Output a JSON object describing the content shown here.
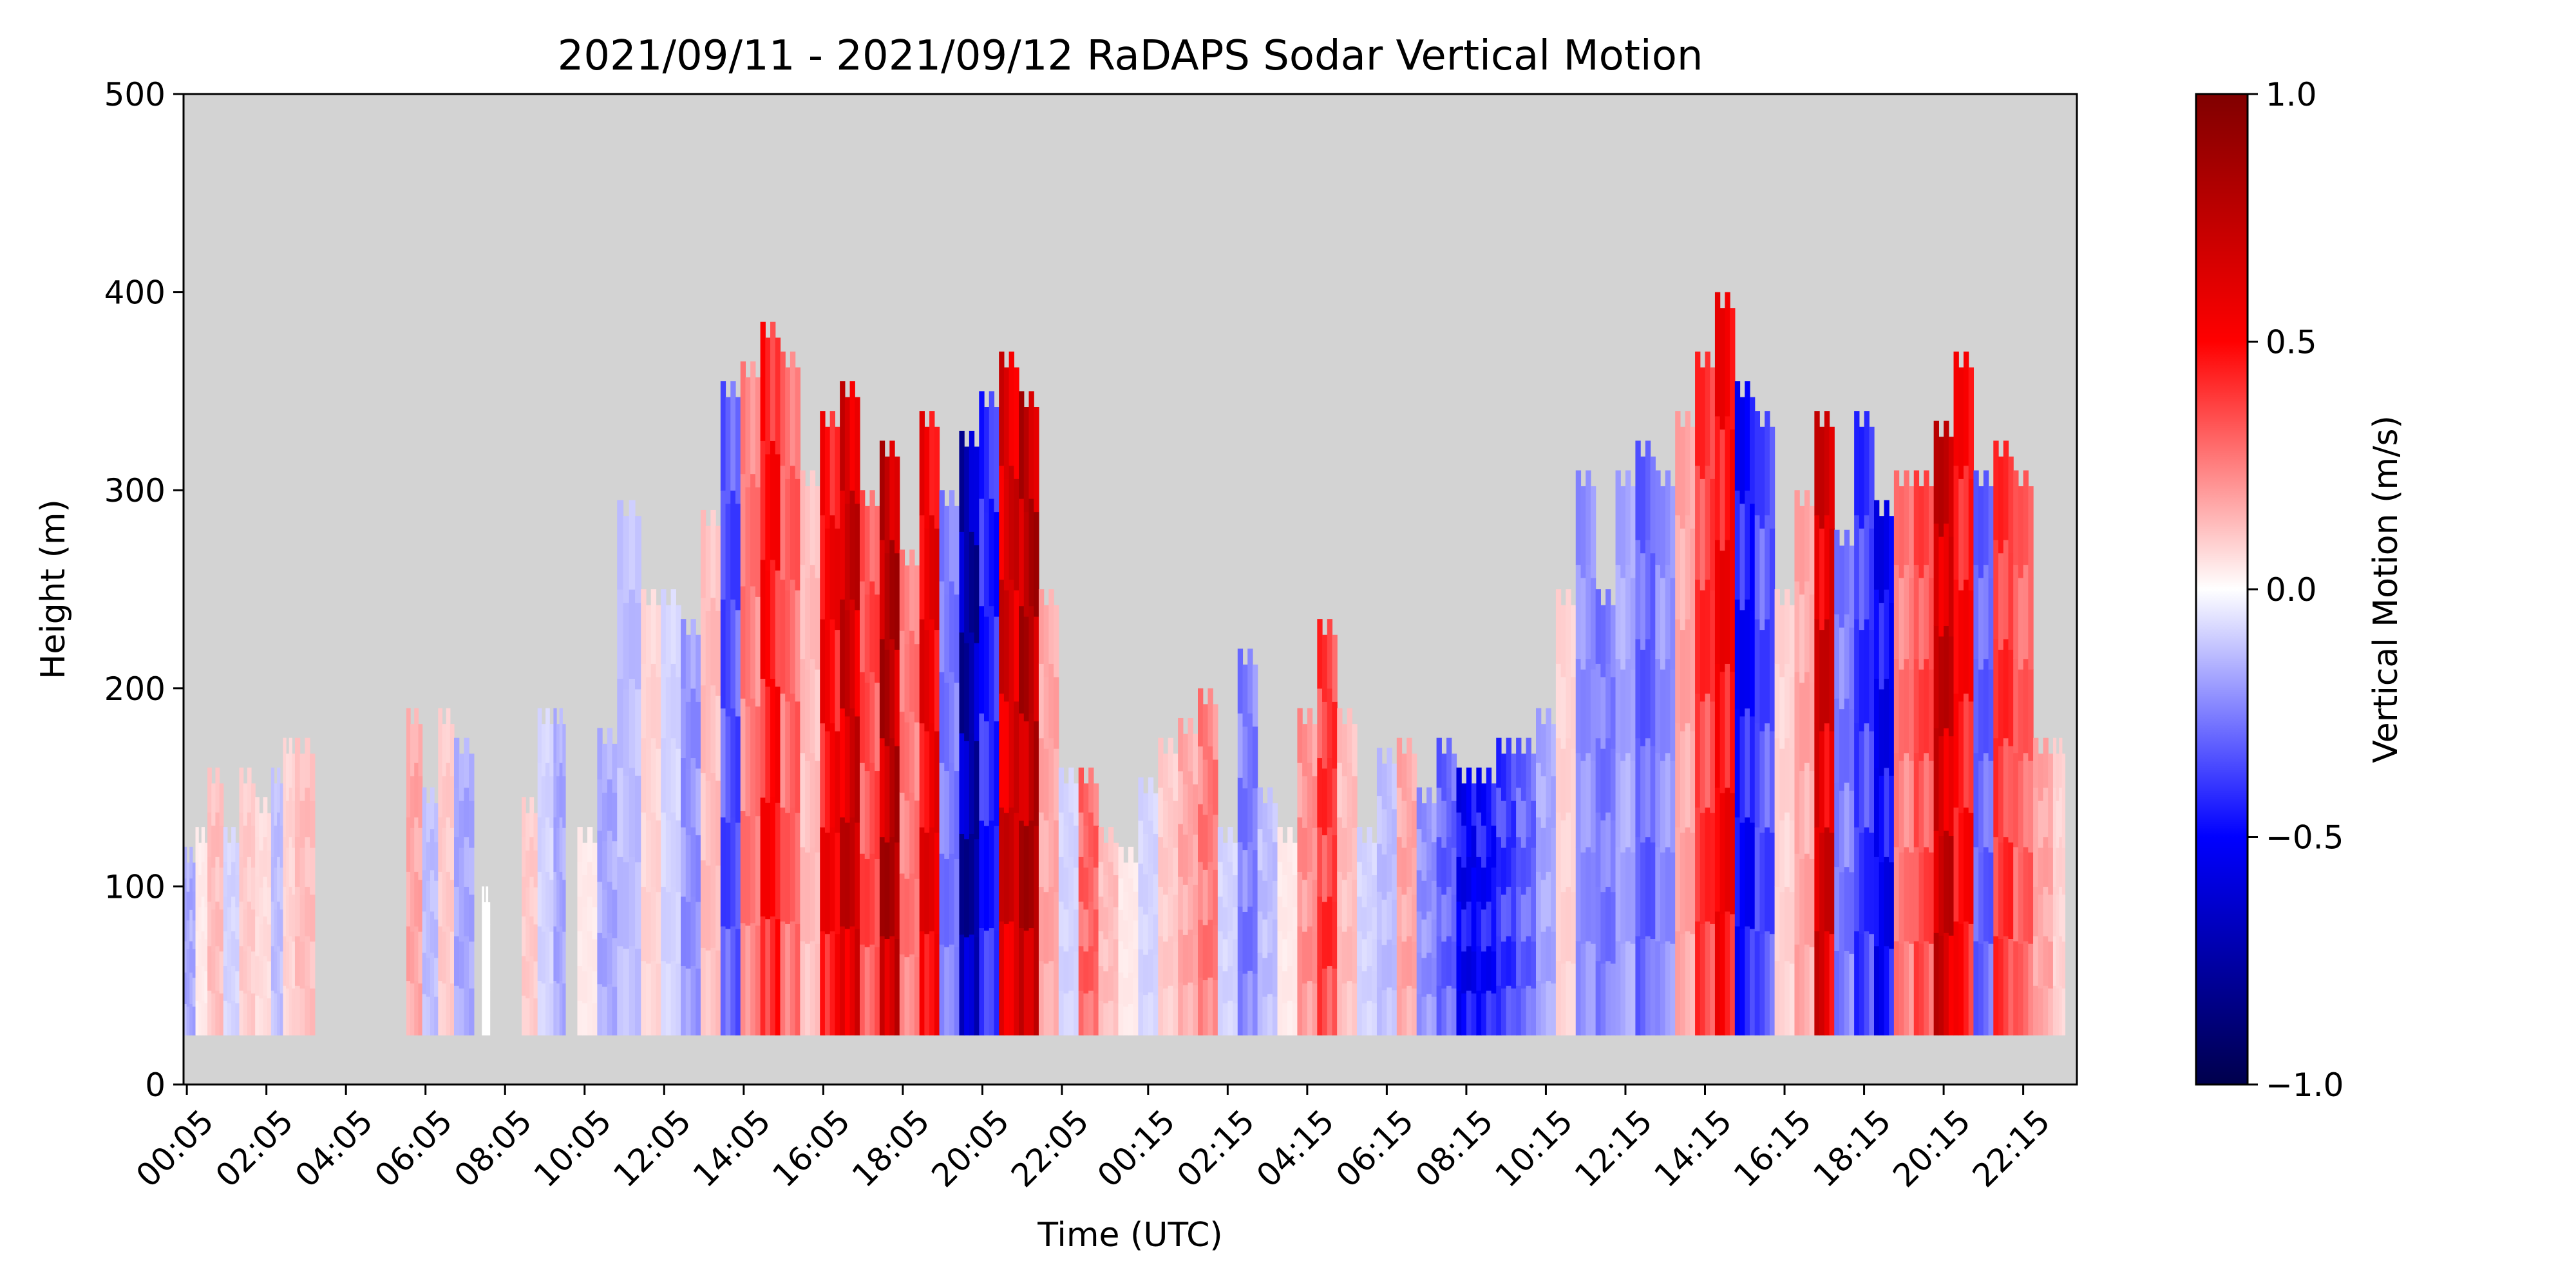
{
  "chart_data": {
    "type": "heatmap",
    "title": "2021/09/11 - 2021/09/12 RaDAPS Sodar Vertical Motion",
    "xlabel": "Time (UTC)",
    "ylabel": "Height (m)",
    "colorbar_label": "Vertical Motion (m/s)",
    "colormap": "seismic",
    "background_color": "#d3d3d3",
    "grid": false,
    "xlim_hours": [
      0,
      47.6
    ],
    "ylim": [
      0,
      500
    ],
    "clim": [
      -1.0,
      1.0
    ],
    "x_ticks": [
      {
        "hour": 0.083,
        "label": "00:05"
      },
      {
        "hour": 2.083,
        "label": "02:05"
      },
      {
        "hour": 4.083,
        "label": "04:05"
      },
      {
        "hour": 6.083,
        "label": "06:05"
      },
      {
        "hour": 8.083,
        "label": "08:05"
      },
      {
        "hour": 10.083,
        "label": "10:05"
      },
      {
        "hour": 12.083,
        "label": "12:05"
      },
      {
        "hour": 14.083,
        "label": "14:05"
      },
      {
        "hour": 16.083,
        "label": "16:05"
      },
      {
        "hour": 18.083,
        "label": "18:05"
      },
      {
        "hour": 20.083,
        "label": "20:05"
      },
      {
        "hour": 22.083,
        "label": "22:05"
      },
      {
        "hour": 24.25,
        "label": "00:15"
      },
      {
        "hour": 26.25,
        "label": "02:15"
      },
      {
        "hour": 28.25,
        "label": "04:15"
      },
      {
        "hour": 30.25,
        "label": "06:15"
      },
      {
        "hour": 32.25,
        "label": "08:15"
      },
      {
        "hour": 34.25,
        "label": "10:15"
      },
      {
        "hour": 36.25,
        "label": "12:15"
      },
      {
        "hour": 38.25,
        "label": "14:15"
      },
      {
        "hour": 40.25,
        "label": "16:15"
      },
      {
        "hour": 42.25,
        "label": "18:15"
      },
      {
        "hour": 44.25,
        "label": "20:15"
      },
      {
        "hour": 46.25,
        "label": "22:15"
      }
    ],
    "y_ticks": [
      {
        "value": 0,
        "label": "0"
      },
      {
        "value": 100,
        "label": "100"
      },
      {
        "value": 200,
        "label": "200"
      },
      {
        "value": 300,
        "label": "300"
      },
      {
        "value": 400,
        "label": "400"
      },
      {
        "value": 500,
        "label": "500"
      }
    ],
    "colorbar_ticks": [
      {
        "value": 1.0,
        "label": "1.0"
      },
      {
        "value": 0.5,
        "label": "0.5"
      },
      {
        "value": 0.0,
        "label": "0.0"
      },
      {
        "value": -0.5,
        "label": "−0.5"
      },
      {
        "value": -1.0,
        "label": "−1.0"
      }
    ],
    "min_height_m": 25,
    "columns": [
      {
        "t0": 0.0,
        "t1": 0.3,
        "top": 120,
        "w": -0.2
      },
      {
        "t0": 0.3,
        "t1": 0.6,
        "top": 130,
        "w": 0.05
      },
      {
        "t0": 0.6,
        "t1": 1.0,
        "top": 160,
        "w": 0.15
      },
      {
        "t0": 1.0,
        "t1": 1.4,
        "top": 130,
        "w": -0.1
      },
      {
        "t0": 1.4,
        "t1": 1.8,
        "top": 160,
        "w": 0.12
      },
      {
        "t0": 1.8,
        "t1": 2.2,
        "top": 145,
        "w": 0.08
      },
      {
        "t0": 2.2,
        "t1": 2.5,
        "top": 160,
        "w": -0.15
      },
      {
        "t0": 2.5,
        "t1": 2.8,
        "top": 175,
        "w": 0.1
      },
      {
        "t0": 2.8,
        "t1": 3.3,
        "top": 175,
        "w": 0.15
      },
      {
        "t0": 5.6,
        "t1": 6.0,
        "top": 190,
        "w": 0.2
      },
      {
        "t0": 6.0,
        "t1": 6.4,
        "top": 150,
        "w": -0.15
      },
      {
        "t0": 6.4,
        "t1": 6.8,
        "top": 190,
        "w": 0.12
      },
      {
        "t0": 6.8,
        "t1": 7.3,
        "top": 175,
        "w": -0.2
      },
      {
        "t0": 7.5,
        "t1": 7.7,
        "top": 100,
        "w": 0.0
      },
      {
        "t0": 8.5,
        "t1": 8.9,
        "top": 145,
        "w": 0.12
      },
      {
        "t0": 8.9,
        "t1": 9.3,
        "top": 190,
        "w": -0.1
      },
      {
        "t0": 9.3,
        "t1": 9.6,
        "top": 190,
        "w": -0.2
      },
      {
        "t0": 9.9,
        "t1": 10.4,
        "top": 130,
        "w": 0.05
      },
      {
        "t0": 10.4,
        "t1": 10.9,
        "top": 180,
        "w": -0.2
      },
      {
        "t0": 10.9,
        "t1": 11.5,
        "top": 295,
        "w": -0.15
      },
      {
        "t0": 11.5,
        "t1": 12.0,
        "top": 250,
        "w": 0.1
      },
      {
        "t0": 12.0,
        "t1": 12.5,
        "top": 250,
        "w": -0.1
      },
      {
        "t0": 12.5,
        "t1": 13.0,
        "top": 235,
        "w": -0.25
      },
      {
        "t0": 13.0,
        "t1": 13.5,
        "top": 290,
        "w": 0.15
      },
      {
        "t0": 13.5,
        "t1": 14.0,
        "top": 355,
        "w": -0.4
      },
      {
        "t0": 14.0,
        "t1": 14.5,
        "top": 365,
        "w": 0.3
      },
      {
        "t0": 14.5,
        "t1": 15.0,
        "top": 385,
        "w": 0.55
      },
      {
        "t0": 15.0,
        "t1": 15.5,
        "top": 370,
        "w": 0.35
      },
      {
        "t0": 15.5,
        "t1": 16.0,
        "top": 310,
        "w": 0.15
      },
      {
        "t0": 16.0,
        "t1": 16.5,
        "top": 340,
        "w": 0.6
      },
      {
        "t0": 16.5,
        "t1": 17.0,
        "top": 355,
        "w": 0.8
      },
      {
        "t0": 17.0,
        "t1": 17.5,
        "top": 300,
        "w": 0.4
      },
      {
        "t0": 17.5,
        "t1": 18.0,
        "top": 325,
        "w": 0.9
      },
      {
        "t0": 18.0,
        "t1": 18.5,
        "top": 270,
        "w": 0.3
      },
      {
        "t0": 18.5,
        "t1": 19.0,
        "top": 340,
        "w": 0.65
      },
      {
        "t0": 19.0,
        "t1": 19.5,
        "top": 300,
        "w": -0.3
      },
      {
        "t0": 19.5,
        "t1": 20.0,
        "top": 330,
        "w": -0.85
      },
      {
        "t0": 20.0,
        "t1": 20.5,
        "top": 350,
        "w": -0.5
      },
      {
        "t0": 20.5,
        "t1": 21.0,
        "top": 370,
        "w": 0.75
      },
      {
        "t0": 21.0,
        "t1": 21.5,
        "top": 350,
        "w": 0.9
      },
      {
        "t0": 21.5,
        "t1": 22.0,
        "top": 250,
        "w": 0.2
      },
      {
        "t0": 22.0,
        "t1": 22.5,
        "top": 160,
        "w": -0.1
      },
      {
        "t0": 22.5,
        "t1": 23.0,
        "top": 160,
        "w": 0.35
      },
      {
        "t0": 23.0,
        "t1": 23.5,
        "top": 130,
        "w": 0.15
      },
      {
        "t0": 23.5,
        "t1": 24.0,
        "top": 120,
        "w": 0.05
      },
      {
        "t0": 24.0,
        "t1": 24.5,
        "top": 155,
        "w": -0.1
      },
      {
        "t0": 24.5,
        "t1": 25.0,
        "top": 175,
        "w": 0.12
      },
      {
        "t0": 25.0,
        "t1": 25.5,
        "top": 185,
        "w": 0.2
      },
      {
        "t0": 25.5,
        "t1": 26.0,
        "top": 200,
        "w": 0.3
      },
      {
        "t0": 26.0,
        "t1": 26.5,
        "top": 130,
        "w": -0.1
      },
      {
        "t0": 26.5,
        "t1": 27.0,
        "top": 220,
        "w": -0.3
      },
      {
        "t0": 27.0,
        "t1": 27.5,
        "top": 150,
        "w": -0.15
      },
      {
        "t0": 27.5,
        "t1": 28.0,
        "top": 130,
        "w": 0.05
      },
      {
        "t0": 28.0,
        "t1": 28.5,
        "top": 190,
        "w": 0.25
      },
      {
        "t0": 28.5,
        "t1": 29.0,
        "top": 235,
        "w": 0.45
      },
      {
        "t0": 29.0,
        "t1": 29.5,
        "top": 190,
        "w": 0.15
      },
      {
        "t0": 29.5,
        "t1": 30.0,
        "top": 130,
        "w": -0.1
      },
      {
        "t0": 30.0,
        "t1": 30.5,
        "top": 170,
        "w": -0.15
      },
      {
        "t0": 30.5,
        "t1": 31.0,
        "top": 175,
        "w": 0.2
      },
      {
        "t0": 31.0,
        "t1": 31.5,
        "top": 150,
        "w": -0.25
      },
      {
        "t0": 31.5,
        "t1": 32.0,
        "top": 175,
        "w": -0.35
      },
      {
        "t0": 32.0,
        "t1": 32.5,
        "top": 160,
        "w": -0.6
      },
      {
        "t0": 32.5,
        "t1": 33.0,
        "top": 160,
        "w": -0.55
      },
      {
        "t0": 33.0,
        "t1": 33.5,
        "top": 175,
        "w": -0.45
      },
      {
        "t0": 33.5,
        "t1": 34.0,
        "top": 175,
        "w": -0.35
      },
      {
        "t0": 34.0,
        "t1": 34.5,
        "top": 190,
        "w": -0.2
      },
      {
        "t0": 34.5,
        "t1": 35.0,
        "top": 250,
        "w": 0.1
      },
      {
        "t0": 35.0,
        "t1": 35.5,
        "top": 310,
        "w": -0.25
      },
      {
        "t0": 35.5,
        "t1": 36.0,
        "top": 250,
        "w": -0.3
      },
      {
        "t0": 36.0,
        "t1": 36.5,
        "top": 310,
        "w": -0.2
      },
      {
        "t0": 36.5,
        "t1": 37.0,
        "top": 325,
        "w": -0.35
      },
      {
        "t0": 37.0,
        "t1": 37.5,
        "top": 310,
        "w": -0.25
      },
      {
        "t0": 37.5,
        "t1": 38.0,
        "top": 340,
        "w": 0.2
      },
      {
        "t0": 38.0,
        "t1": 38.5,
        "top": 370,
        "w": 0.45
      },
      {
        "t0": 38.5,
        "t1": 39.0,
        "top": 400,
        "w": 0.6
      },
      {
        "t0": 39.0,
        "t1": 39.5,
        "top": 355,
        "w": -0.55
      },
      {
        "t0": 39.5,
        "t1": 40.0,
        "top": 340,
        "w": -0.4
      },
      {
        "t0": 40.0,
        "t1": 40.5,
        "top": 250,
        "w": 0.1
      },
      {
        "t0": 40.5,
        "t1": 41.0,
        "top": 300,
        "w": 0.2
      },
      {
        "t0": 41.0,
        "t1": 41.5,
        "top": 340,
        "w": 0.75
      },
      {
        "t0": 41.5,
        "t1": 42.0,
        "top": 280,
        "w": -0.3
      },
      {
        "t0": 42.0,
        "t1": 42.5,
        "top": 340,
        "w": -0.45
      },
      {
        "t0": 42.5,
        "t1": 43.0,
        "top": 295,
        "w": -0.6
      },
      {
        "t0": 43.0,
        "t1": 43.5,
        "top": 310,
        "w": 0.3
      },
      {
        "t0": 43.5,
        "t1": 44.0,
        "top": 310,
        "w": 0.4
      },
      {
        "t0": 44.0,
        "t1": 44.5,
        "top": 335,
        "w": 0.8
      },
      {
        "t0": 44.5,
        "t1": 45.0,
        "top": 370,
        "w": 0.55
      },
      {
        "t0": 45.0,
        "t1": 45.5,
        "top": 310,
        "w": -0.35
      },
      {
        "t0": 45.5,
        "t1": 46.0,
        "top": 325,
        "w": 0.45
      },
      {
        "t0": 46.0,
        "t1": 46.5,
        "top": 310,
        "w": 0.35
      },
      {
        "t0": 46.5,
        "t1": 47.0,
        "top": 175,
        "w": 0.2
      },
      {
        "t0": 47.0,
        "t1": 47.3,
        "top": 175,
        "w": 0.1
      }
    ]
  }
}
